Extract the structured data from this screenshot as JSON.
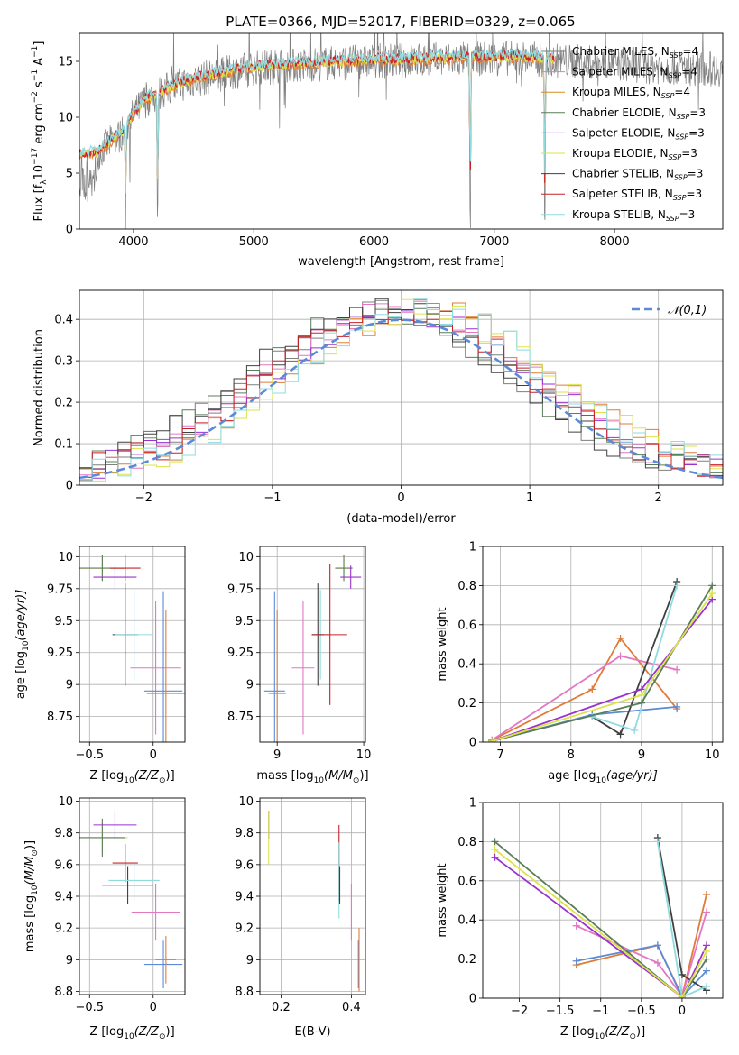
{
  "title": "PLATE=0366, MJD=52017, FIBERID=0329, z=0.065",
  "colors": {
    "chabrier_miles": "#7f7f7f",
    "salpeter_miles": "#e377c2",
    "kroupa_miles": "#d98c1f",
    "chabrier_elodie": "#5a7d5a",
    "salpeter_elodie": "#9a32cd",
    "kroupa_elodie": "#dde34a",
    "chabrier_stelib": "#404040",
    "salpeter_stelib": "#c8202a",
    "kroupa_stelib": "#8fdbe0",
    "blue_model": "#5b8bd6",
    "orange_model": "#e07b39",
    "normal_curve": "#5b8bd6"
  },
  "legend_spectrum": [
    {
      "label": "Chabrier MILES, N",
      "sub": "SSP",
      "suffix": "=4",
      "color_key": "chabrier_miles"
    },
    {
      "label": "Salpeter MILES, N",
      "sub": "SSP",
      "suffix": "=4",
      "color_key": "salpeter_miles"
    },
    {
      "label": "Kroupa MILES, N",
      "sub": "SSP",
      "suffix": "=4",
      "color_key": "kroupa_miles"
    },
    {
      "label": "Chabrier ELODIE, N",
      "sub": "SSP",
      "suffix": "=3",
      "color_key": "chabrier_elodie"
    },
    {
      "label": "Salpeter ELODIE, N",
      "sub": "SSP",
      "suffix": "=3",
      "color_key": "salpeter_elodie"
    },
    {
      "label": "Kroupa ELODIE, N",
      "sub": "SSP",
      "suffix": "=3",
      "color_key": "kroupa_elodie"
    },
    {
      "label": "Chabrier STELIB, N",
      "sub": "SSP",
      "suffix": "=3",
      "color_key": "chabrier_stelib"
    },
    {
      "label": "Salpeter STELIB, N",
      "sub": "SSP",
      "suffix": "=3",
      "color_key": "salpeter_stelib"
    },
    {
      "label": "Kroupa STELIB, N",
      "sub": "SSP",
      "suffix": "=3",
      "color_key": "kroupa_stelib"
    }
  ],
  "chart_data": [
    {
      "id": "spectrum",
      "type": "line",
      "xlabel": "wavelength [Angstrom, rest frame]",
      "ylabel_parts": [
        "Flux [f",
        "λ",
        "10",
        "−17",
        " erg cm",
        "−2",
        " s",
        "−1",
        " A",
        "−1",
        "]"
      ],
      "xlim": [
        3550,
        8900
      ],
      "ylim": [
        0,
        17.5
      ],
      "xticks": [
        4000,
        5000,
        6000,
        7000,
        8000
      ],
      "yticks": [
        0,
        5,
        10,
        15
      ],
      "continuum": {
        "x": [
          3550,
          3700,
          3900,
          4000,
          4100,
          4300,
          4500,
          4800,
          5000,
          5300,
          5600,
          6000,
          6400,
          6800,
          7200,
          7600,
          8000,
          8400,
          8900
        ],
        "y": [
          6.5,
          6.8,
          8.5,
          10.2,
          11.5,
          12.6,
          13.3,
          14.0,
          14.4,
          14.6,
          14.8,
          15.0,
          15.1,
          15.2,
          15.3,
          15.0,
          14.8,
          14.5,
          14.3
        ]
      },
      "model_xrange": [
        3550,
        7500
      ],
      "dips": [
        {
          "x": 3934,
          "depth": 8.5
        },
        {
          "x": 4200,
          "depth": 12.0
        },
        {
          "x": 6800,
          "depth": 15.5
        },
        {
          "x": 7420,
          "depth": 15.5
        }
      ]
    },
    {
      "id": "residuals",
      "type": "histogram",
      "xlabel": "(data-model)/error",
      "ylabel": "Normed distribution",
      "xlim": [
        -2.5,
        2.5
      ],
      "ylim": [
        0,
        0.47
      ],
      "xticks": [
        -2,
        -1,
        0,
        1,
        2
      ],
      "yticks": [
        0.0,
        0.1,
        0.2,
        0.3,
        0.4
      ],
      "legend": "𝒩(0,1)",
      "bin_width": 0.1
    },
    {
      "id": "age_vs_Z",
      "type": "scatter",
      "xlabel": "Z [log",
      "xlabel_tail": "(Z/Z",
      "ylabel": "age  [log",
      "ylabel_tail": "(age/yr)]",
      "xlim": [
        -0.58,
        0.25
      ],
      "ylim": [
        8.55,
        10.08
      ],
      "xticks": [
        -0.5,
        0.0
      ],
      "yticks": [
        8.75,
        9.0,
        9.25,
        9.5,
        9.75,
        10.0
      ],
      "points": [
        {
          "color_key": "kroupa_elodie",
          "x": -0.4,
          "y": 9.91,
          "xerr": 0.18,
          "yerr": 0.1
        },
        {
          "color_key": "chabrier_elodie",
          "x": -0.4,
          "y": 9.91,
          "xerr": 0.18,
          "yerr": 0.1
        },
        {
          "color_key": "salpeter_elodie",
          "x": -0.3,
          "y": 9.84,
          "xerr": 0.17,
          "yerr": 0.09
        },
        {
          "color_key": "salpeter_stelib",
          "x": -0.22,
          "y": 9.91,
          "xerr": 0.12,
          "yerr": 0.1
        },
        {
          "color_key": "chabrier_stelib",
          "x": -0.22,
          "y": 9.39,
          "xerr": 0.1,
          "yerr": 0.4
        },
        {
          "color_key": "kroupa_stelib",
          "x": -0.15,
          "y": 9.39,
          "xerr": 0.15,
          "yerr": 0.35
        },
        {
          "color_key": "salpeter_miles",
          "x": 0.02,
          "y": 9.13,
          "xerr": 0.2,
          "yerr": 0.52
        },
        {
          "color_key": "blue_model",
          "x": 0.08,
          "y": 8.95,
          "xerr": 0.15,
          "yerr": 0.78
        },
        {
          "color_key": "orange_model",
          "x": 0.1,
          "y": 8.93,
          "xerr": 0.15,
          "yerr": 0.65
        }
      ]
    },
    {
      "id": "age_vs_mass",
      "type": "scatter",
      "xlabel": "mass [log",
      "xlabel_tail": "(M/M",
      "xlim": [
        8.8,
        10.02
      ],
      "ylim": [
        8.55,
        10.08
      ],
      "xticks": [
        9,
        10
      ],
      "yticks": [
        8.75,
        9.0,
        9.25,
        9.5,
        9.75,
        10.0
      ],
      "points": [
        {
          "color_key": "blue_model",
          "x": 8.97,
          "y": 8.95,
          "xerr": 0.12,
          "yerr": 0.78
        },
        {
          "color_key": "orange_model",
          "x": 9.0,
          "y": 8.93,
          "xerr": 0.1,
          "yerr": 0.65
        },
        {
          "color_key": "salpeter_miles",
          "x": 9.3,
          "y": 9.13,
          "xerr": 0.13,
          "yerr": 0.52
        },
        {
          "color_key": "kroupa_stelib",
          "x": 9.5,
          "y": 9.39,
          "xerr": 0.1,
          "yerr": 0.35
        },
        {
          "color_key": "chabrier_stelib",
          "x": 9.47,
          "y": 9.39,
          "xerr": 0.07,
          "yerr": 0.4
        },
        {
          "color_key": "salpeter_stelib",
          "x": 9.61,
          "y": 9.39,
          "xerr": 0.2,
          "yerr": 0.55
        },
        {
          "color_key": "kroupa_elodie",
          "x": 9.77,
          "y": 9.91,
          "xerr": 0.1,
          "yerr": 0.1
        },
        {
          "color_key": "chabrier_elodie",
          "x": 9.77,
          "y": 9.91,
          "xerr": 0.1,
          "yerr": 0.1
        },
        {
          "color_key": "salpeter_elodie",
          "x": 9.85,
          "y": 9.84,
          "xerr": 0.12,
          "yerr": 0.09
        }
      ]
    },
    {
      "id": "weight_vs_age",
      "type": "line",
      "xlabel": "age  [log",
      "xlabel_tail": "(age/yr)]",
      "ylabel": "mass weight",
      "xlim": [
        6.75,
        10.15
      ],
      "ylim": [
        0,
        1.0
      ],
      "xticks": [
        7,
        8,
        9,
        10
      ],
      "yticks": [
        0.0,
        0.2,
        0.4,
        0.6,
        0.8,
        1.0
      ],
      "series": [
        {
          "color_key": "orange_model",
          "x": [
            6.88,
            8.3,
            8.7,
            9.5
          ],
          "y": [
            0.01,
            0.27,
            0.53,
            0.17
          ]
        },
        {
          "color_key": "salpeter_miles",
          "x": [
            6.88,
            8.7,
            9.5
          ],
          "y": [
            0.01,
            0.44,
            0.37
          ]
        },
        {
          "color_key": "blue_model",
          "x": [
            6.88,
            8.3,
            9.5
          ],
          "y": [
            0.005,
            0.14,
            0.18
          ]
        },
        {
          "color_key": "chabrier_stelib",
          "x": [
            8.3,
            8.7,
            9.5
          ],
          "y": [
            0.13,
            0.04,
            0.82
          ]
        },
        {
          "color_key": "kroupa_stelib",
          "x": [
            8.3,
            8.9,
            9.5
          ],
          "y": [
            0.13,
            0.06,
            0.8
          ]
        },
        {
          "color_key": "chabrier_elodie",
          "x": [
            6.88,
            9.0,
            10.0
          ],
          "y": [
            0.005,
            0.2,
            0.8
          ]
        },
        {
          "color_key": "salpeter_elodie",
          "x": [
            6.88,
            9.0,
            10.0
          ],
          "y": [
            0.005,
            0.27,
            0.73
          ]
        },
        {
          "color_key": "kroupa_elodie",
          "x": [
            6.88,
            9.0,
            10.0
          ],
          "y": [
            0.005,
            0.24,
            0.76
          ]
        }
      ]
    },
    {
      "id": "mass_vs_Z",
      "type": "scatter",
      "xlabel": "Z [log",
      "xlabel_tail": "(Z/Z",
      "ylabel": "mass [log",
      "ylabel_tail": "(M/M",
      "xlim": [
        -0.58,
        0.25
      ],
      "ylim": [
        8.78,
        10.02
      ],
      "xticks": [
        -0.5,
        0.0
      ],
      "yticks": [
        8.8,
        9.0,
        9.2,
        9.4,
        9.6,
        9.8,
        10.0
      ],
      "points": [
        {
          "color_key": "kroupa_elodie",
          "x": -0.4,
          "y": 9.77,
          "xerr": 0.2,
          "yerr": 0.1
        },
        {
          "color_key": "chabrier_elodie",
          "x": -0.4,
          "y": 9.77,
          "xerr": 0.18,
          "yerr": 0.12
        },
        {
          "color_key": "salpeter_elodie",
          "x": -0.3,
          "y": 9.85,
          "xerr": 0.17,
          "yerr": 0.09
        },
        {
          "color_key": "salpeter_stelib",
          "x": -0.22,
          "y": 9.61,
          "xerr": 0.1,
          "yerr": 0.12
        },
        {
          "color_key": "chabrier_stelib",
          "x": -0.2,
          "y": 9.47,
          "xerr": 0.2,
          "yerr": 0.12
        },
        {
          "color_key": "kroupa_stelib",
          "x": -0.15,
          "y": 9.5,
          "xerr": 0.2,
          "yerr": 0.12
        },
        {
          "color_key": "salpeter_miles",
          "x": 0.02,
          "y": 9.3,
          "xerr": 0.19,
          "yerr": 0.18
        },
        {
          "color_key": "blue_model",
          "x": 0.08,
          "y": 8.97,
          "xerr": 0.15,
          "yerr": 0.15
        },
        {
          "color_key": "orange_model",
          "x": 0.1,
          "y": 9.0,
          "xerr": 0.08,
          "yerr": 0.15
        }
      ]
    },
    {
      "id": "mass_vs_ebv",
      "type": "scatter",
      "xlabel": "E(B-V)",
      "xlim": [
        0.14,
        0.44
      ],
      "ylim": [
        8.78,
        10.02
      ],
      "xticks": [
        0.2,
        0.4
      ],
      "yticks": [
        8.8,
        9.0,
        9.2,
        9.4,
        9.6,
        9.8,
        10.0
      ],
      "points": [
        {
          "color_key": "salpeter_elodie",
          "x": 0.165,
          "y": 9.85,
          "xerr": 0.0,
          "yerr": 0.09
        },
        {
          "color_key": "kroupa_elodie",
          "x": 0.165,
          "y": 9.77,
          "xerr": 0.0,
          "yerr": 0.17
        },
        {
          "color_key": "salpeter_stelib",
          "x": 0.365,
          "y": 9.61,
          "xerr": 0.0,
          "yerr": 0.24
        },
        {
          "color_key": "kroupa_stelib",
          "x": 0.365,
          "y": 9.5,
          "xerr": 0.0,
          "yerr": 0.24
        },
        {
          "color_key": "chabrier_stelib",
          "x": 0.367,
          "y": 9.47,
          "xerr": 0.0,
          "yerr": 0.12
        },
        {
          "color_key": "salpeter_miles",
          "x": 0.4,
          "y": 9.3,
          "xerr": 0.0,
          "yerr": 0.18
        },
        {
          "color_key": "blue_model",
          "x": 0.42,
          "y": 8.97,
          "xerr": 0.0,
          "yerr": 0.15
        },
        {
          "color_key": "orange_model",
          "x": 0.422,
          "y": 9.0,
          "xerr": 0.0,
          "yerr": 0.2
        }
      ]
    },
    {
      "id": "weight_vs_Z",
      "type": "line",
      "xlabel": "Z [log",
      "xlabel_tail": "(Z/Z",
      "ylabel": "mass weight",
      "xlim": [
        -2.45,
        0.5
      ],
      "ylim": [
        0,
        1.0
      ],
      "xticks": [
        -2.0,
        -1.5,
        -1.0,
        -0.5,
        0.0
      ],
      "yticks": [
        0.0,
        0.2,
        0.4,
        0.6,
        0.8,
        1.0
      ],
      "series": [
        {
          "color_key": "orange_model",
          "x": [
            -1.3,
            -0.3,
            0.0,
            0.3
          ],
          "y": [
            0.17,
            0.27,
            0.01,
            0.53
          ]
        },
        {
          "color_key": "salpeter_miles",
          "x": [
            -1.3,
            -0.3,
            0.0,
            0.3
          ],
          "y": [
            0.37,
            0.18,
            0.01,
            0.44
          ]
        },
        {
          "color_key": "blue_model",
          "x": [
            -1.3,
            -0.3,
            0.0,
            0.3
          ],
          "y": [
            0.19,
            0.27,
            0.005,
            0.14
          ]
        },
        {
          "color_key": "chabrier_stelib",
          "x": [
            -0.3,
            0.0,
            0.3
          ],
          "y": [
            0.82,
            0.12,
            0.04
          ]
        },
        {
          "color_key": "kroupa_stelib",
          "x": [
            -0.3,
            0.0,
            0.3
          ],
          "y": [
            0.8,
            0.005,
            0.06
          ]
        },
        {
          "color_key": "chabrier_elodie",
          "x": [
            -2.3,
            0.0,
            0.3
          ],
          "y": [
            0.8,
            0.005,
            0.2
          ]
        },
        {
          "color_key": "salpeter_elodie",
          "x": [
            -2.3,
            0.0,
            0.3
          ],
          "y": [
            0.72,
            0.005,
            0.27
          ]
        },
        {
          "color_key": "kroupa_elodie",
          "x": [
            -2.3,
            0.0,
            0.3
          ],
          "y": [
            0.76,
            0.005,
            0.24
          ]
        }
      ]
    }
  ]
}
